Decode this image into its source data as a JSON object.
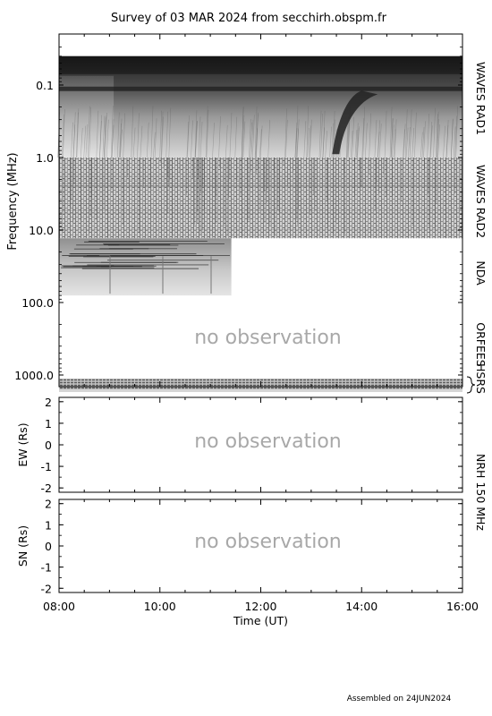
{
  "title": "Survey of 03 MAR 2024 from secchirh.obspm.fr",
  "footer": "Assembled on 24JUN2024",
  "no_observation_text": "no observation",
  "chart_data": [
    {
      "type": "heatmap",
      "panel": "dynamic-spectrum",
      "ylabel": "Frequency (MHz)",
      "yscale": "log",
      "yaxis_inverted": true,
      "ylim": [
        0.04,
        1300
      ],
      "y_ticks": [
        "0.1",
        "1.0",
        "10.0",
        "100.0",
        "1000.0"
      ],
      "x_ticks": [
        "08:00",
        "10:00",
        "12:00",
        "14:00",
        "16:00"
      ],
      "xlim": [
        "08:00",
        "16:00"
      ],
      "instruments": [
        {
          "name": "WAVES RAD1",
          "freq_range_mhz": [
            0.04,
            1.0
          ],
          "time_range": [
            "08:00",
            "16:00"
          ]
        },
        {
          "name": "WAVES RAD2",
          "freq_range_mhz": [
            1.0,
            13.0
          ],
          "time_range": [
            "08:00",
            "16:00"
          ]
        },
        {
          "name": "NDA",
          "freq_range_mhz": [
            13.0,
            80.0
          ],
          "time_range": [
            "08:00",
            "11:25"
          ]
        },
        {
          "name": "ORFEES",
          "freq_range_mhz": [
            140,
            1000
          ],
          "time_range": [
            "08:00",
            "16:00"
          ],
          "observed": false
        },
        {
          "name": "HSRS",
          "freq_range_mhz": [
            1000,
            1250
          ],
          "time_range": [
            "08:00",
            "16:00"
          ]
        }
      ],
      "features": [
        {
          "description": "drifting radio burst",
          "time_start": "13:25",
          "time_end": "14:00",
          "freq_start_mhz": 0.9,
          "freq_end_mhz": 0.12
        }
      ]
    },
    {
      "type": "scatter",
      "panel": "NRH-EW",
      "ylabel": "EW (Rs)",
      "ylim": [
        -2.2,
        2.2
      ],
      "y_ticks": [
        "2",
        "1",
        "0",
        "-1",
        "-2"
      ],
      "instrument": "NRH 150 MHz",
      "observed": false
    },
    {
      "type": "scatter",
      "panel": "NRH-SN",
      "ylabel": "SN (Rs)",
      "xlabel": "Time (UT)",
      "ylim": [
        -2.2,
        2.2
      ],
      "y_ticks": [
        "2",
        "1",
        "0",
        "-1",
        "-2"
      ],
      "x_ticks": [
        "08:00",
        "10:00",
        "12:00",
        "14:00",
        "16:00"
      ],
      "observed": false
    }
  ],
  "right_labels": {
    "rad1": "WAVES RAD1",
    "rad2": "WAVES RAD2",
    "nda": "NDA",
    "orfees": "ORFEES",
    "hsrs": "HSRS",
    "nrh": "NRH 150 MHz"
  }
}
